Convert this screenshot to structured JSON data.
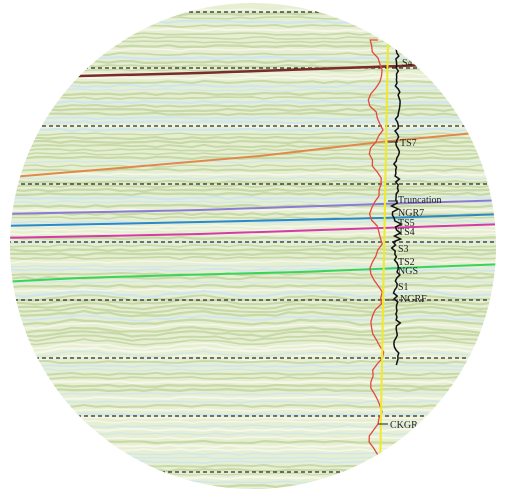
{
  "horizon_labels": [
    {
      "key": "s4",
      "text": "S4"
    },
    {
      "key": "ts7",
      "text": "TS7"
    },
    {
      "key": "truncation",
      "text": "Truncation"
    },
    {
      "key": "ngr7",
      "text": "NGR7"
    },
    {
      "key": "ts5",
      "text": "TS5"
    },
    {
      "key": "ts4",
      "text": "TS4"
    },
    {
      "key": "s3",
      "text": "S3"
    },
    {
      "key": "ts2",
      "text": "TS2"
    },
    {
      "key": "ngs",
      "text": "NGS"
    },
    {
      "key": "s1",
      "text": "S1"
    },
    {
      "key": "ngrf",
      "text": "NGRF"
    },
    {
      "key": "ckgr",
      "text": "CKGR"
    }
  ],
  "colors": {
    "background_seismic": "#e7efd2",
    "reflector_light": "#c7d9a8",
    "reflector_blue": "#cfe6ee",
    "horizon_brown": "#7a2b2b",
    "horizon_orange": "#e08a4a",
    "horizon_purple": "#8a7bd6",
    "horizon_blue": "#2a8ac9",
    "horizon_magenta": "#d63aa6",
    "horizon_green": "#39d45a",
    "gamma_red": "#e24a3a",
    "gamma_black": "#111111",
    "well_yellow": "#f0ea2a",
    "dashed_black": "#2a2a2a"
  }
}
